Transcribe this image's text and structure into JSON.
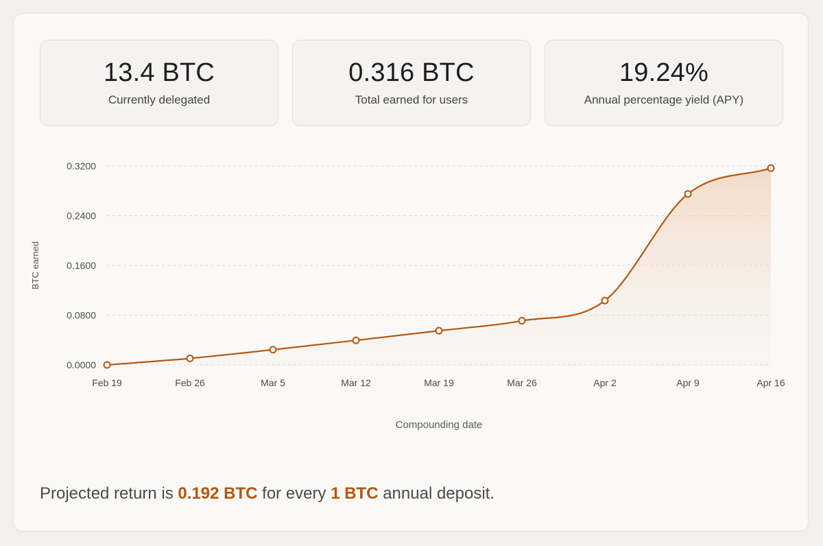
{
  "stats": [
    {
      "value": "13.4 BTC",
      "label": "Currently delegated"
    },
    {
      "value": "0.316 BTC",
      "label": "Total earned for users"
    },
    {
      "value": "19.24%",
      "label": "Annual percentage yield (APY)"
    }
  ],
  "footer": {
    "prefix": "Projected return is ",
    "return_value": "0.192 BTC",
    "middle": " for every ",
    "deposit_value": "1 BTC",
    "suffix": " annual deposit."
  },
  "colors": {
    "accent": "#b35610",
    "grid": "#dcdad6"
  },
  "chart_data": {
    "type": "area",
    "title": "",
    "xlabel": "Compounding date",
    "ylabel": "BTC earned",
    "categories": [
      "Feb 19",
      "Feb 26",
      "Mar 5",
      "Mar 12",
      "Mar 19",
      "Mar 26",
      "Apr 2",
      "Apr 9",
      "Apr 16"
    ],
    "y_ticks": [
      "0.0000",
      "0.0800",
      "0.1600",
      "0.2400",
      "0.3200"
    ],
    "ylim": [
      0,
      0.32
    ],
    "grid": "horizontal dashed",
    "series": [
      {
        "values": [
          0.0,
          0.0105,
          0.0245,
          0.0395,
          0.055,
          0.071,
          0.1035,
          0.275,
          0.3165
        ]
      }
    ]
  }
}
